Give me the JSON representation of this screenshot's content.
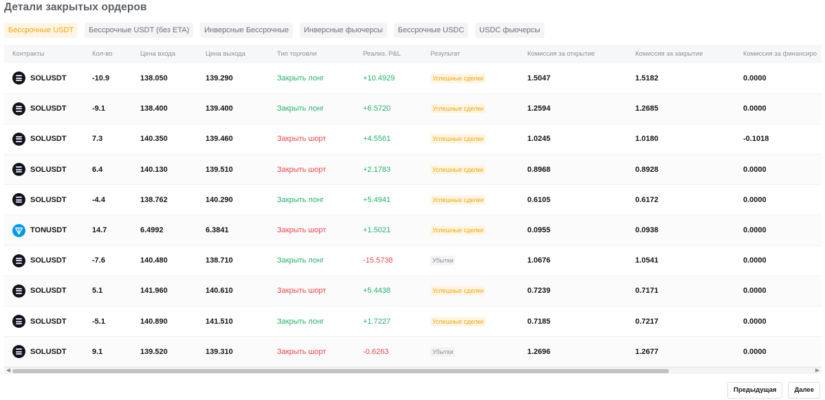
{
  "page_title": "Детали закрытых ордеров",
  "tabs": [
    {
      "label": "Бессрочные USDT",
      "active": true
    },
    {
      "label": "Бессрочные USDT (без ETA)",
      "active": false
    },
    {
      "label": "Инверсные Бессрочные",
      "active": false
    },
    {
      "label": "Инверсные фьючерсы",
      "active": false
    },
    {
      "label": "Бессрочные USDC",
      "active": false
    },
    {
      "label": "USDC фьючерсы",
      "active": false
    }
  ],
  "columns": [
    "Контракты",
    "Кол-во",
    "Цена входа",
    "Цена выхода",
    "Тип торговли",
    "Реализ. P&L",
    "Результат",
    "Комиссия за открытие",
    "Комиссия за закрытие",
    "Комиссия за финансиро"
  ],
  "rows": [
    {
      "icon": "sol",
      "contract": "SOLUSDT",
      "qty": "-10.9",
      "entry": "138.050",
      "exit": "139.290",
      "trade_type": "Закрыть лонг",
      "side": "long",
      "pnl": "+10.4929",
      "pnl_sign": "pos",
      "result": "Успешные сделки",
      "result_kind": "win",
      "fee_open": "1.5047",
      "fee_close": "1.5182",
      "fee_funding": "0.0000"
    },
    {
      "icon": "sol",
      "contract": "SOLUSDT",
      "qty": "-9.1",
      "entry": "138.400",
      "exit": "139.400",
      "trade_type": "Закрыть лонг",
      "side": "long",
      "pnl": "+6.5720",
      "pnl_sign": "pos",
      "result": "Успешные сделки",
      "result_kind": "win",
      "fee_open": "1.2594",
      "fee_close": "1.2685",
      "fee_funding": "0.0000"
    },
    {
      "icon": "sol",
      "contract": "SOLUSDT",
      "qty": "7.3",
      "entry": "140.350",
      "exit": "139.460",
      "trade_type": "Закрыть шорт",
      "side": "short",
      "pnl": "+4.5561",
      "pnl_sign": "pos",
      "result": "Успешные сделки",
      "result_kind": "win",
      "fee_open": "1.0245",
      "fee_close": "1.0180",
      "fee_funding": "-0.1018"
    },
    {
      "icon": "sol",
      "contract": "SOLUSDT",
      "qty": "6.4",
      "entry": "140.130",
      "exit": "139.510",
      "trade_type": "Закрыть шорт",
      "side": "short",
      "pnl": "+2.1783",
      "pnl_sign": "pos",
      "result": "Успешные сделки",
      "result_kind": "win",
      "fee_open": "0.8968",
      "fee_close": "0.8928",
      "fee_funding": "0.0000"
    },
    {
      "icon": "sol",
      "contract": "SOLUSDT",
      "qty": "-4.4",
      "entry": "138.762",
      "exit": "140.290",
      "trade_type": "Закрыть лонг",
      "side": "long",
      "pnl": "+5.4941",
      "pnl_sign": "pos",
      "result": "Успешные сделки",
      "result_kind": "win",
      "fee_open": "0.6105",
      "fee_close": "0.6172",
      "fee_funding": "0.0000"
    },
    {
      "icon": "ton",
      "contract": "TONUSDT",
      "qty": "14.7",
      "entry": "6.4992",
      "exit": "6.3841",
      "trade_type": "Закрыть шорт",
      "side": "short",
      "pnl": "+1.5021",
      "pnl_sign": "pos",
      "result": "Успешные сделки",
      "result_kind": "win",
      "fee_open": "0.0955",
      "fee_close": "0.0938",
      "fee_funding": "0.0000"
    },
    {
      "icon": "sol",
      "contract": "SOLUSDT",
      "qty": "-7.6",
      "entry": "140.480",
      "exit": "138.710",
      "trade_type": "Закрыть лонг",
      "side": "long",
      "pnl": "-15.5738",
      "pnl_sign": "neg",
      "result": "Убытки",
      "result_kind": "loss",
      "fee_open": "1.0676",
      "fee_close": "1.0541",
      "fee_funding": "0.0000"
    },
    {
      "icon": "sol",
      "contract": "SOLUSDT",
      "qty": "5.1",
      "entry": "141.960",
      "exit": "140.610",
      "trade_type": "Закрыть шорт",
      "side": "short",
      "pnl": "+5.4438",
      "pnl_sign": "pos",
      "result": "Успешные сделки",
      "result_kind": "win",
      "fee_open": "0.7239",
      "fee_close": "0.7171",
      "fee_funding": "0.0000"
    },
    {
      "icon": "sol",
      "contract": "SOLUSDT",
      "qty": "-5.1",
      "entry": "140.890",
      "exit": "141.510",
      "trade_type": "Закрыть лонг",
      "side": "long",
      "pnl": "+1.7227",
      "pnl_sign": "pos",
      "result": "Успешные сделки",
      "result_kind": "win",
      "fee_open": "0.7185",
      "fee_close": "0.7217",
      "fee_funding": "0.0000"
    },
    {
      "icon": "sol",
      "contract": "SOLUSDT",
      "qty": "9.1",
      "entry": "139.520",
      "exit": "139.310",
      "trade_type": "Закрыть шорт",
      "side": "short",
      "pnl": "-0.6263",
      "pnl_sign": "neg",
      "result": "Убытки",
      "result_kind": "loss",
      "fee_open": "1.2696",
      "fee_close": "1.2677",
      "fee_funding": "0.0000"
    }
  ],
  "pagination": {
    "prev_label": "Предыдущая",
    "next_label": "Далее"
  },
  "colors": {
    "accent": "#f7a600",
    "profit": "#20b26c",
    "loss": "#ef454a"
  }
}
